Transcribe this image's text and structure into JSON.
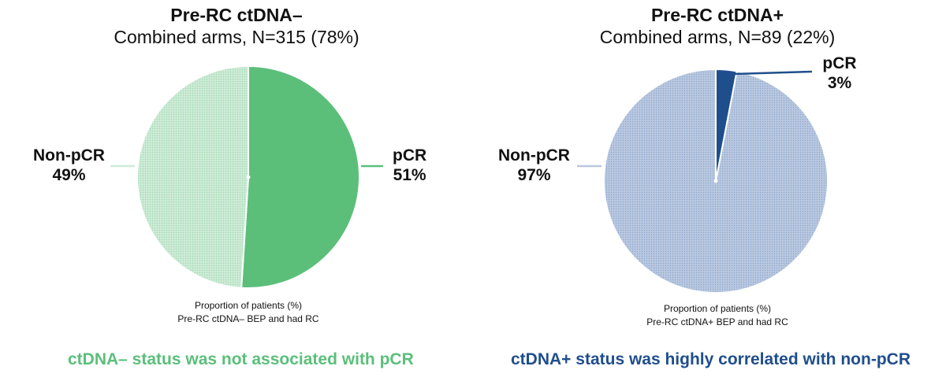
{
  "chart_data": [
    {
      "type": "pie",
      "title": "Pre-RC ctDNA–",
      "subtitle": "Combined arms, N=315 (78%)",
      "slices": [
        {
          "name": "pCR",
          "label_value": "51%",
          "value": 51,
          "color": "#5bbf7a"
        },
        {
          "name": "Non-pCR",
          "label_value": "49%",
          "value": 49,
          "color": "#cdebd6"
        }
      ],
      "footnote_lines": [
        "Proportion of patients (%)",
        "Pre-RC ctDNA– BEP and had RC"
      ],
      "conclusion": "ctDNA– status was not associated with pCR",
      "conclusion_color": "#5bbf7a"
    },
    {
      "type": "pie",
      "title": "Pre-RC ctDNA+",
      "subtitle": "Combined arms, N=89 (22%)",
      "slices": [
        {
          "name": "pCR",
          "label_value": "3%",
          "value": 3,
          "color": "#1f4e8c"
        },
        {
          "name": "Non-pCR",
          "label_value": "97%",
          "value": 97,
          "color": "#a9bcd9"
        }
      ],
      "footnote_lines": [
        "Proportion of patients (%)",
        "Pre-RC ctDNA+ BEP and had RC"
      ],
      "conclusion": "ctDNA+ status was highly correlated with non-pCR",
      "conclusion_color": "#1f4e8c"
    }
  ]
}
